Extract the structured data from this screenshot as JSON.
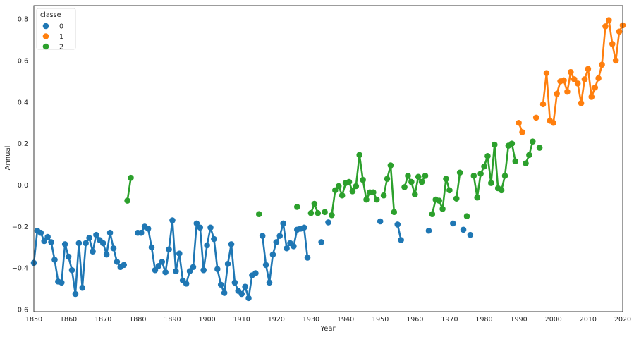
{
  "chart_data": {
    "type": "line",
    "xlabel": "Year",
    "ylabel": "Annual",
    "xlim": [
      1850,
      2020
    ],
    "ylim": [
      -0.61,
      0.865
    ],
    "x_ticks": [
      1850,
      1860,
      1870,
      1880,
      1890,
      1900,
      1910,
      1920,
      1930,
      1940,
      1950,
      1960,
      1970,
      1980,
      1990,
      2000,
      2010,
      2020
    ],
    "y_ticks": [
      -0.6,
      -0.4,
      -0.2,
      0.0,
      0.2,
      0.4,
      0.6,
      0.8
    ],
    "y_tick_labels": [
      "−0.6",
      "−0.4",
      "−0.2",
      "0.0",
      "0.2",
      "0.4",
      "0.6",
      "0.8"
    ],
    "reference_line": 0.0,
    "grid": false,
    "legend": {
      "title": "classe",
      "placement": "top-left",
      "entries": [
        {
          "label": "0",
          "color": "#1f77b4"
        },
        {
          "label": "1",
          "color": "#ff7f0e"
        },
        {
          "label": "2",
          "color": "#2ca02c"
        }
      ]
    },
    "series": [
      {
        "classe": "0",
        "color": "#1f77b4",
        "x": [
          1850,
          1851,
          1852,
          1853,
          1854,
          1855,
          1856,
          1857,
          1858,
          1859,
          1860,
          1861,
          1862,
          1863,
          1864,
          1865,
          1866,
          1867,
          1868,
          1869,
          1870,
          1871,
          1872,
          1873,
          1874,
          1875,
          1876,
          1880,
          1881,
          1882,
          1883,
          1884,
          1885,
          1886,
          1887,
          1888,
          1889,
          1890,
          1891,
          1892,
          1893,
          1894,
          1895,
          1896,
          1897,
          1898,
          1899,
          1900,
          1901,
          1902,
          1903,
          1904,
          1905,
          1906,
          1907,
          1908,
          1909,
          1910,
          1911,
          1912,
          1913,
          1914,
          1916,
          1917,
          1918,
          1919,
          1920,
          1921,
          1922,
          1923,
          1924,
          1925,
          1926,
          1927,
          1928,
          1929,
          1933,
          1935,
          1950,
          1955,
          1956,
          1964,
          1971,
          1974,
          1976
        ],
        "y": [
          -0.375,
          -0.22,
          -0.23,
          -0.27,
          -0.25,
          -0.275,
          -0.36,
          -0.465,
          -0.47,
          -0.285,
          -0.345,
          -0.41,
          -0.525,
          -0.28,
          -0.495,
          -0.28,
          -0.255,
          -0.32,
          -0.24,
          -0.265,
          -0.28,
          -0.335,
          -0.23,
          -0.305,
          -0.37,
          -0.395,
          -0.385,
          -0.23,
          -0.23,
          -0.2,
          -0.21,
          -0.3,
          -0.41,
          -0.39,
          -0.37,
          -0.42,
          -0.31,
          -0.17,
          -0.415,
          -0.33,
          -0.46,
          -0.475,
          -0.415,
          -0.395,
          -0.185,
          -0.205,
          -0.41,
          -0.29,
          -0.205,
          -0.26,
          -0.405,
          -0.48,
          -0.52,
          -0.38,
          -0.285,
          -0.47,
          -0.51,
          -0.525,
          -0.49,
          -0.545,
          -0.435,
          -0.425,
          -0.245,
          -0.385,
          -0.47,
          -0.335,
          -0.275,
          -0.245,
          -0.185,
          -0.305,
          -0.28,
          -0.295,
          -0.215,
          -0.21,
          -0.205,
          -0.35,
          -0.275,
          -0.18,
          -0.175,
          -0.19,
          -0.265,
          -0.22,
          -0.185,
          -0.215,
          -0.24
        ]
      },
      {
        "classe": "1",
        "color": "#ff7f0e",
        "x": [
          1990,
          1991,
          1995,
          1997,
          1998,
          1999,
          2000,
          2001,
          2002,
          2003,
          2004,
          2005,
          2006,
          2007,
          2008,
          2009,
          2010,
          2011,
          2012,
          2013,
          2014,
          2015,
          2016,
          2017,
          2018,
          2019,
          2020
        ],
        "y": [
          0.3,
          0.255,
          0.325,
          0.39,
          0.54,
          0.31,
          0.3,
          0.44,
          0.5,
          0.505,
          0.45,
          0.545,
          0.51,
          0.49,
          0.395,
          0.51,
          0.56,
          0.425,
          0.47,
          0.515,
          0.58,
          0.765,
          0.795,
          0.68,
          0.6,
          0.74,
          0.77
        ]
      },
      {
        "classe": "2",
        "color": "#2ca02c",
        "x": [
          1877,
          1878,
          1915,
          1926,
          1930,
          1931,
          1932,
          1934,
          1936,
          1937,
          1938,
          1939,
          1940,
          1941,
          1942,
          1943,
          1944,
          1945,
          1946,
          1947,
          1948,
          1949,
          1951,
          1952,
          1953,
          1954,
          1957,
          1958,
          1959,
          1960,
          1961,
          1962,
          1963,
          1965,
          1966,
          1967,
          1968,
          1969,
          1970,
          1972,
          1973,
          1975,
          1977,
          1978,
          1979,
          1980,
          1981,
          1982,
          1983,
          1984,
          1985,
          1986,
          1987,
          1988,
          1989,
          1992,
          1993,
          1994,
          1996
        ],
        "y": [
          -0.075,
          0.035,
          -0.14,
          -0.105,
          -0.135,
          -0.09,
          -0.135,
          -0.13,
          -0.145,
          -0.025,
          -0.005,
          -0.05,
          0.01,
          0.015,
          -0.03,
          -0.005,
          0.145,
          0.025,
          -0.07,
          -0.035,
          -0.035,
          -0.07,
          -0.05,
          0.03,
          0.095,
          -0.13,
          -0.01,
          0.045,
          0.015,
          -0.045,
          0.04,
          0.015,
          0.045,
          -0.14,
          -0.07,
          -0.075,
          -0.115,
          0.03,
          -0.025,
          -0.065,
          0.06,
          -0.15,
          0.045,
          -0.06,
          0.055,
          0.09,
          0.14,
          0.01,
          0.195,
          -0.015,
          -0.025,
          0.045,
          0.19,
          0.2,
          0.115,
          0.105,
          0.145,
          0.21,
          0.18
        ]
      }
    ]
  }
}
